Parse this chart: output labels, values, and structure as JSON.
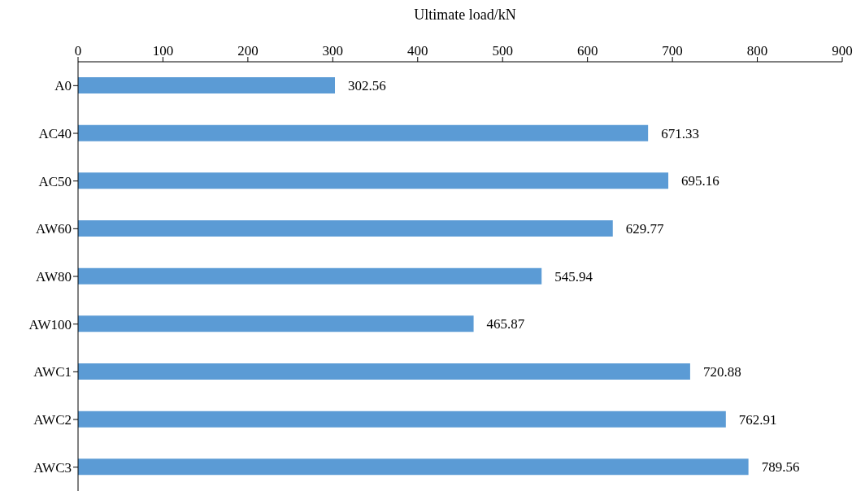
{
  "chart_data": {
    "type": "bar",
    "orientation": "horizontal",
    "xlabel": "Ultimate load/kN",
    "categories": [
      "A0",
      "AC40",
      "AC50",
      "AW60",
      "AW80",
      "AW100",
      "AWC1",
      "AWC2",
      "AWC3"
    ],
    "values": [
      302.56,
      671.33,
      695.16,
      629.77,
      545.94,
      465.87,
      720.88,
      762.91,
      789.56
    ],
    "color": "#5b9bd5",
    "xlim": [
      0,
      900
    ],
    "xticks": [
      0,
      100,
      200,
      300,
      400,
      500,
      600,
      700,
      800,
      900
    ],
    "data_labels": true
  }
}
